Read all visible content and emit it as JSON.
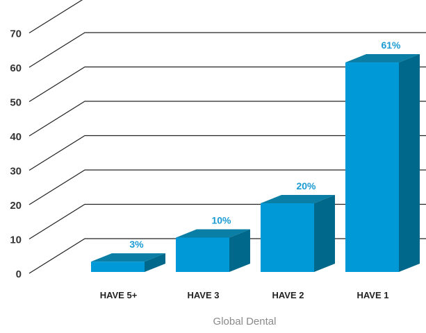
{
  "chart_data": {
    "type": "bar",
    "categories": [
      "HAVE 5+",
      "HAVE 3",
      "HAVE 2",
      "HAVE 1"
    ],
    "values": [
      3,
      10,
      20,
      61
    ],
    "data_labels": [
      "3%",
      "10%",
      "20%",
      "61%"
    ],
    "y_ticks": [
      "0",
      "10",
      "20",
      "30",
      "40",
      "50",
      "60",
      "70"
    ],
    "ylim": [
      0,
      80
    ],
    "grid": true,
    "style": "3d",
    "caption": "Global Dental",
    "colors": {
      "front": "#0099d8",
      "top": "#0a7ea4",
      "side": "#00688a",
      "label": "#1b9bd4",
      "grid": "#222222"
    }
  }
}
